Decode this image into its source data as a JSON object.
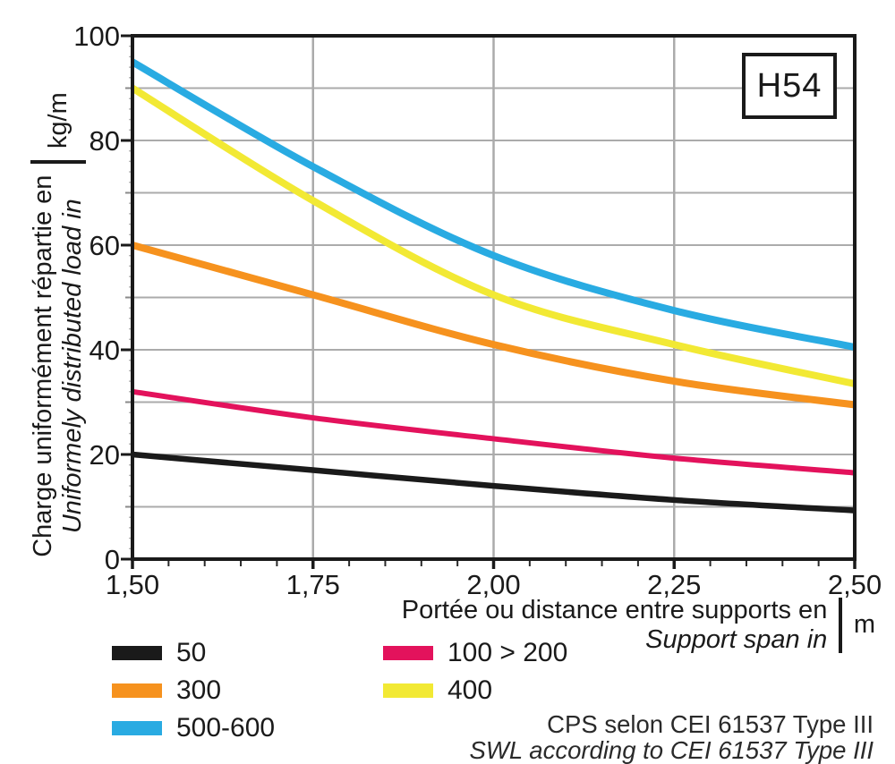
{
  "title_box": "H54",
  "colors": {
    "black": "#1a1a1a",
    "pink": "#e3125c",
    "orange": "#f6921e",
    "yellow": "#f2e934",
    "blue": "#29abe2",
    "grid": "#ababab",
    "axis": "#1a1a1a"
  },
  "axes": {
    "y": {
      "label_fr": "Charge uniformément répartie en",
      "label_en": "Uniformely distributed load in",
      "unit": "kg/m",
      "tick_labels": [
        "0",
        "20",
        "40",
        "60",
        "80",
        "100"
      ],
      "tick_values": [
        0,
        20,
        40,
        60,
        80,
        100
      ],
      "min": 0,
      "max": 100
    },
    "x": {
      "label_fr": "Portée ou distance entre supports en",
      "label_en": "Support span in",
      "unit": "m",
      "tick_labels": [
        "1,50",
        "1,75",
        "2,00",
        "2,25",
        "2,50"
      ],
      "tick_values": [
        1.5,
        1.75,
        2.0,
        2.25,
        2.5
      ],
      "min": 1.5,
      "max": 2.5
    }
  },
  "chart_data": {
    "type": "line",
    "title": "H54",
    "x": [
      1.5,
      1.75,
      2.0,
      2.25,
      2.5
    ],
    "xlabel": "Portée ou distance entre supports en / Support span in (m)",
    "ylabel": "Charge uniformément répartie en / Uniformely distributed load in (kg/m)",
    "xlim": [
      1.5,
      2.5
    ],
    "ylim": [
      0,
      100
    ],
    "grid": "on",
    "legend_position": "bottom",
    "series": [
      {
        "name": "50",
        "color": "#1a1a1a",
        "values": [
          20,
          17,
          14,
          11.3,
          9.3
        ]
      },
      {
        "name": "100 > 200",
        "color": "#e3125c",
        "values": [
          32,
          27,
          23,
          19.3,
          16.5
        ]
      },
      {
        "name": "300",
        "color": "#f6921e",
        "values": [
          60,
          50.5,
          41,
          34,
          29.5
        ]
      },
      {
        "name": "400",
        "color": "#f2e934",
        "values": [
          90,
          68.5,
          50.5,
          41,
          33.5
        ]
      },
      {
        "name": "500-600",
        "color": "#29abe2",
        "values": [
          95,
          75,
          58,
          47.5,
          40.5
        ]
      }
    ]
  },
  "legend": {
    "columns": [
      [
        {
          "label": "50",
          "color": "#1a1a1a"
        },
        {
          "label": "300",
          "color": "#f6921e"
        },
        {
          "label": "500-600",
          "color": "#29abe2"
        }
      ],
      [
        {
          "label": "100 > 200",
          "color": "#e3125c"
        },
        {
          "label": "400",
          "color": "#f2e934"
        }
      ]
    ]
  },
  "footer": {
    "line1": "CPS selon CEI 61537 Type III",
    "line2": "SWL according to CEI 61537 Type III"
  }
}
